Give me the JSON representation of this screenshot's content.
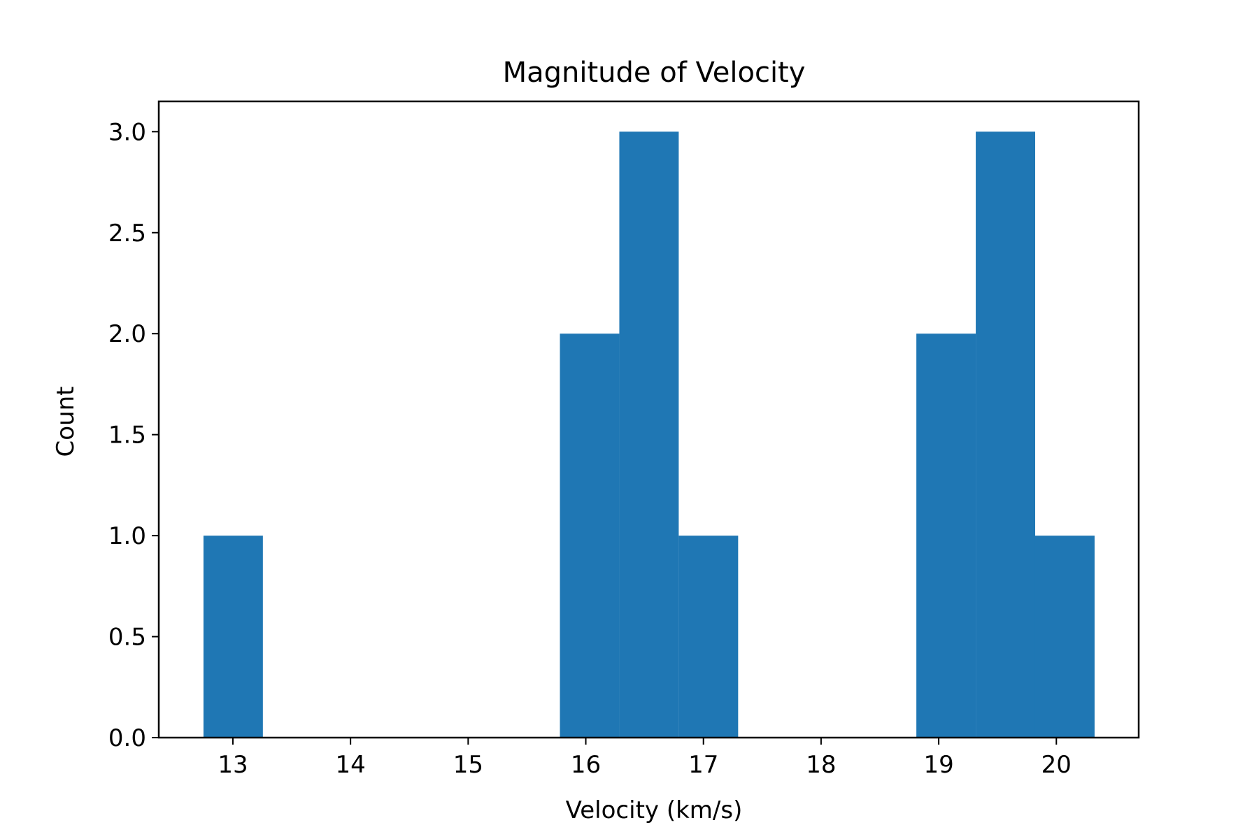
{
  "chart_data": {
    "type": "bar",
    "title": "Magnitude of Velocity",
    "xlabel": "Velocity (km/s)",
    "ylabel": "Count",
    "bin_width": 0.505,
    "bins": [
      {
        "x0": 12.75,
        "x1": 13.255,
        "count": 1
      },
      {
        "x0": 15.78,
        "x1": 16.285,
        "count": 2
      },
      {
        "x0": 16.285,
        "x1": 16.79,
        "count": 3
      },
      {
        "x0": 16.79,
        "x1": 17.295,
        "count": 1
      },
      {
        "x0": 18.81,
        "x1": 19.315,
        "count": 2
      },
      {
        "x0": 19.315,
        "x1": 19.82,
        "count": 3
      },
      {
        "x0": 19.82,
        "x1": 20.325,
        "count": 1
      }
    ],
    "xlim": [
      12.37,
      20.7
    ],
    "ylim": [
      0,
      3.15
    ],
    "xticks": [
      13,
      14,
      15,
      16,
      17,
      18,
      19,
      20
    ],
    "yticks": [
      0.0,
      0.5,
      1.0,
      1.5,
      2.0,
      2.5,
      3.0
    ],
    "ytick_labels": [
      "0.0",
      "0.5",
      "1.0",
      "1.5",
      "2.0",
      "2.5",
      "3.0"
    ],
    "xtick_labels": [
      "13",
      "14",
      "15",
      "16",
      "17",
      "18",
      "19",
      "20"
    ],
    "grid": false,
    "legend": "none",
    "bar_color": "#1f77b4"
  }
}
